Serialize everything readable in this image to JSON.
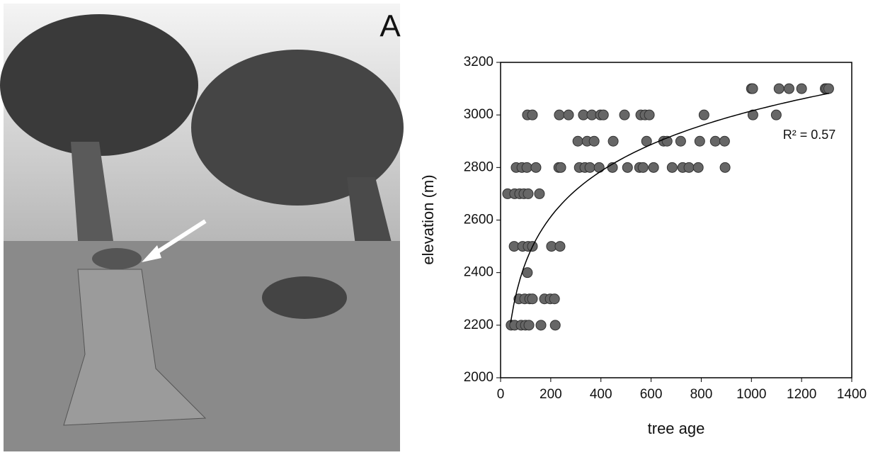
{
  "panel_label": "A",
  "chart_data": {
    "type": "scatter",
    "xlabel": "tree age",
    "ylabel": "elevation (m)",
    "annotation": "R² = 0.57",
    "xlim": [
      0,
      1400
    ],
    "xticks": [
      0,
      200,
      400,
      600,
      800,
      1000,
      1200,
      1400
    ],
    "ylim": [
      2000,
      3200
    ],
    "yticks": [
      2000,
      2200,
      2400,
      2600,
      2800,
      3000,
      3200
    ],
    "color": "#666666",
    "trendline": {
      "model": "logarithmic",
      "a": 250,
      "b": 1288,
      "xrange": [
        40,
        1310
      ]
    },
    "x": [
      1000,
      1005,
      1110,
      1150,
      1200,
      1294,
      1300,
      1308,
      107,
      127,
      234,
      271,
      330,
      364,
      398,
      410,
      494,
      559,
      576,
      593,
      811,
      1006,
      1099,
      308,
      345,
      373,
      449,
      582,
      650,
      664,
      718,
      794,
      856,
      893,
      62,
      85,
      105,
      141,
      232,
      240,
      314,
      336,
      356,
      393,
      446,
      506,
      554,
      568,
      610,
      684,
      726,
      751,
      788,
      895,
      28,
      56,
      76,
      93,
      110,
      155,
      54,
      88,
      110,
      127,
      203,
      237,
      107,
      73,
      96,
      116,
      127,
      175,
      198,
      215,
      42,
      56,
      82,
      99,
      113,
      161,
      218
    ],
    "y": [
      3100,
      3100,
      3100,
      3100,
      3100,
      3100,
      3100,
      3100,
      3000,
      3000,
      3000,
      3000,
      3000,
      3000,
      3000,
      3000,
      3000,
      3000,
      3000,
      3000,
      3000,
      3000,
      3000,
      2900,
      2900,
      2900,
      2900,
      2900,
      2900,
      2900,
      2900,
      2900,
      2900,
      2900,
      2800,
      2800,
      2800,
      2800,
      2800,
      2800,
      2800,
      2800,
      2800,
      2800,
      2800,
      2800,
      2800,
      2800,
      2800,
      2800,
      2800,
      2800,
      2800,
      2800,
      2700,
      2700,
      2700,
      2700,
      2700,
      2700,
      2500,
      2500,
      2500,
      2500,
      2500,
      2500,
      2400,
      2300,
      2300,
      2300,
      2300,
      2300,
      2300,
      2300,
      2200,
      2200,
      2200,
      2200,
      2200,
      2200,
      2200
    ]
  }
}
